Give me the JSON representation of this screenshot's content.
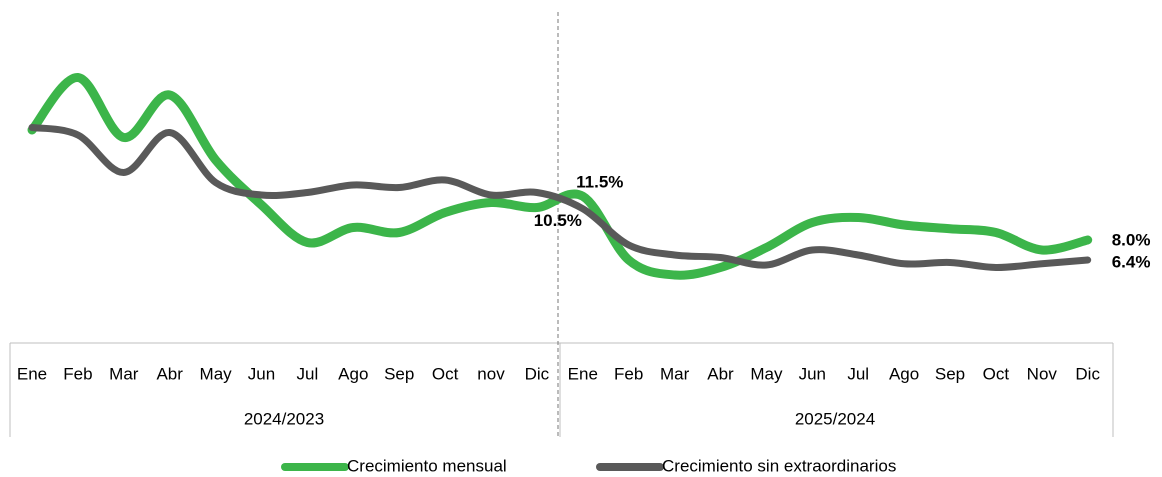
{
  "chart_data": {
    "type": "line",
    "categories": [
      "Ene",
      "Feb",
      "Mar",
      "Abr",
      "May",
      "Jun",
      "Jul",
      "Ago",
      "Sep",
      "Oct",
      "nov",
      "Dic",
      "Ene",
      "Feb",
      "Mar",
      "Abr",
      "May",
      "Jun",
      "Jul",
      "Ago",
      "Sep",
      "Oct",
      "Nov",
      "Dic"
    ],
    "groups": [
      "2024/2023",
      "2025/2024"
    ],
    "ylim": [
      0,
      25.6
    ],
    "series": [
      {
        "name": "Crecimiento mensual",
        "color": "#3cb54a",
        "values": [
          16.8,
          21.0,
          16.2,
          19.6,
          14.4,
          10.8,
          7.8,
          9.0,
          8.6,
          10.2,
          11.0,
          10.6,
          11.5,
          6.4,
          5.2,
          5.8,
          7.4,
          9.4,
          9.8,
          9.2,
          8.9,
          8.6,
          7.2,
          8.0
        ],
        "value_labels": [
          null,
          null,
          null,
          null,
          null,
          null,
          null,
          null,
          null,
          null,
          null,
          null,
          "11.5%",
          null,
          null,
          null,
          null,
          null,
          null,
          null,
          null,
          null,
          null,
          "8.0%"
        ]
      },
      {
        "name": "Crecimiento sin extraordinarios",
        "color": "#595959",
        "values": [
          17.0,
          16.4,
          13.4,
          16.6,
          12.6,
          11.6,
          11.8,
          12.4,
          12.2,
          12.8,
          11.6,
          11.8,
          10.5,
          7.6,
          6.8,
          6.6,
          6.0,
          7.2,
          6.8,
          6.1,
          6.2,
          5.8,
          6.1,
          6.4
        ],
        "value_labels": [
          null,
          null,
          null,
          null,
          null,
          null,
          null,
          null,
          null,
          null,
          null,
          null,
          "10.5%",
          null,
          null,
          null,
          null,
          null,
          null,
          null,
          null,
          null,
          null,
          "6.4%"
        ]
      }
    ]
  }
}
